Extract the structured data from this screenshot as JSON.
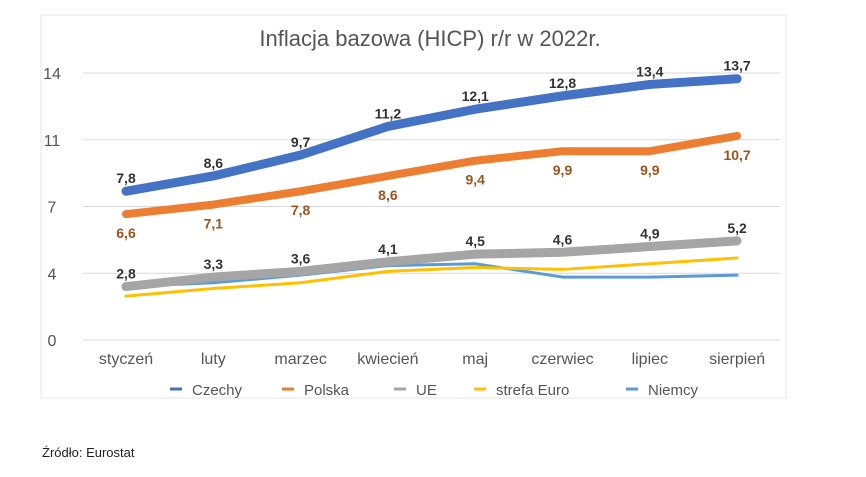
{
  "chart_data": {
    "type": "line",
    "title": "Inflacja bazowa (HICP) r/r w 2022r.",
    "categories": [
      "styczeń",
      "luty",
      "marzec",
      "kwiecień",
      "maj",
      "czerwiec",
      "lipiec",
      "sierpień"
    ],
    "ylim": [
      0,
      14
    ],
    "yticks": [
      {
        "value": 0,
        "label": "0"
      },
      {
        "value": 3.5,
        "label": "4"
      },
      {
        "value": 7,
        "label": "7"
      },
      {
        "value": 10.5,
        "label": "11"
      },
      {
        "value": 14,
        "label": "14"
      }
    ],
    "grid": true,
    "legend": "bottom",
    "series": [
      {
        "name": "Czechy",
        "color": "#4472C4",
        "width": 9,
        "values": [
          7.8,
          8.6,
          9.7,
          11.2,
          12.1,
          12.8,
          13.4,
          13.7
        ],
        "labels": [
          "7,8",
          "8,6",
          "9,7",
          "11,2",
          "12,1",
          "12,8",
          "13,4",
          "13,7"
        ],
        "label_pos": "above",
        "label_color": "#333"
      },
      {
        "name": "Polska",
        "color": "#ED7D31",
        "width": 8,
        "values": [
          6.6,
          7.1,
          7.8,
          8.6,
          9.4,
          9.9,
          9.9,
          10.7
        ],
        "labels": [
          "6,6",
          "7,1",
          "7,8",
          "8,6",
          "9,4",
          "9,9",
          "9,9",
          "10,7"
        ],
        "label_pos": "below",
        "label_color": "#A0521B"
      },
      {
        "name": "UE",
        "color": "#A5A5A5",
        "width": 9,
        "values": [
          2.8,
          3.3,
          3.6,
          4.1,
          4.5,
          4.6,
          4.9,
          5.2
        ],
        "labels": [
          "2,8",
          "3,3",
          "3,6",
          "4,1",
          "4,5",
          "4,6",
          "4,9",
          "5,2"
        ],
        "label_pos": "above",
        "label_color": "#333"
      },
      {
        "name": "strefa Euro",
        "color": "#FFC000",
        "width": 3,
        "values": [
          2.3,
          2.7,
          3.0,
          3.6,
          3.8,
          3.7,
          4.0,
          4.3
        ]
      },
      {
        "name": "Niemcy",
        "color": "#5B9BD5",
        "width": 3,
        "values": [
          2.8,
          3.0,
          3.4,
          3.9,
          4.0,
          3.3,
          3.3,
          3.4
        ]
      }
    ]
  },
  "source": "Źródło: Eurostat"
}
